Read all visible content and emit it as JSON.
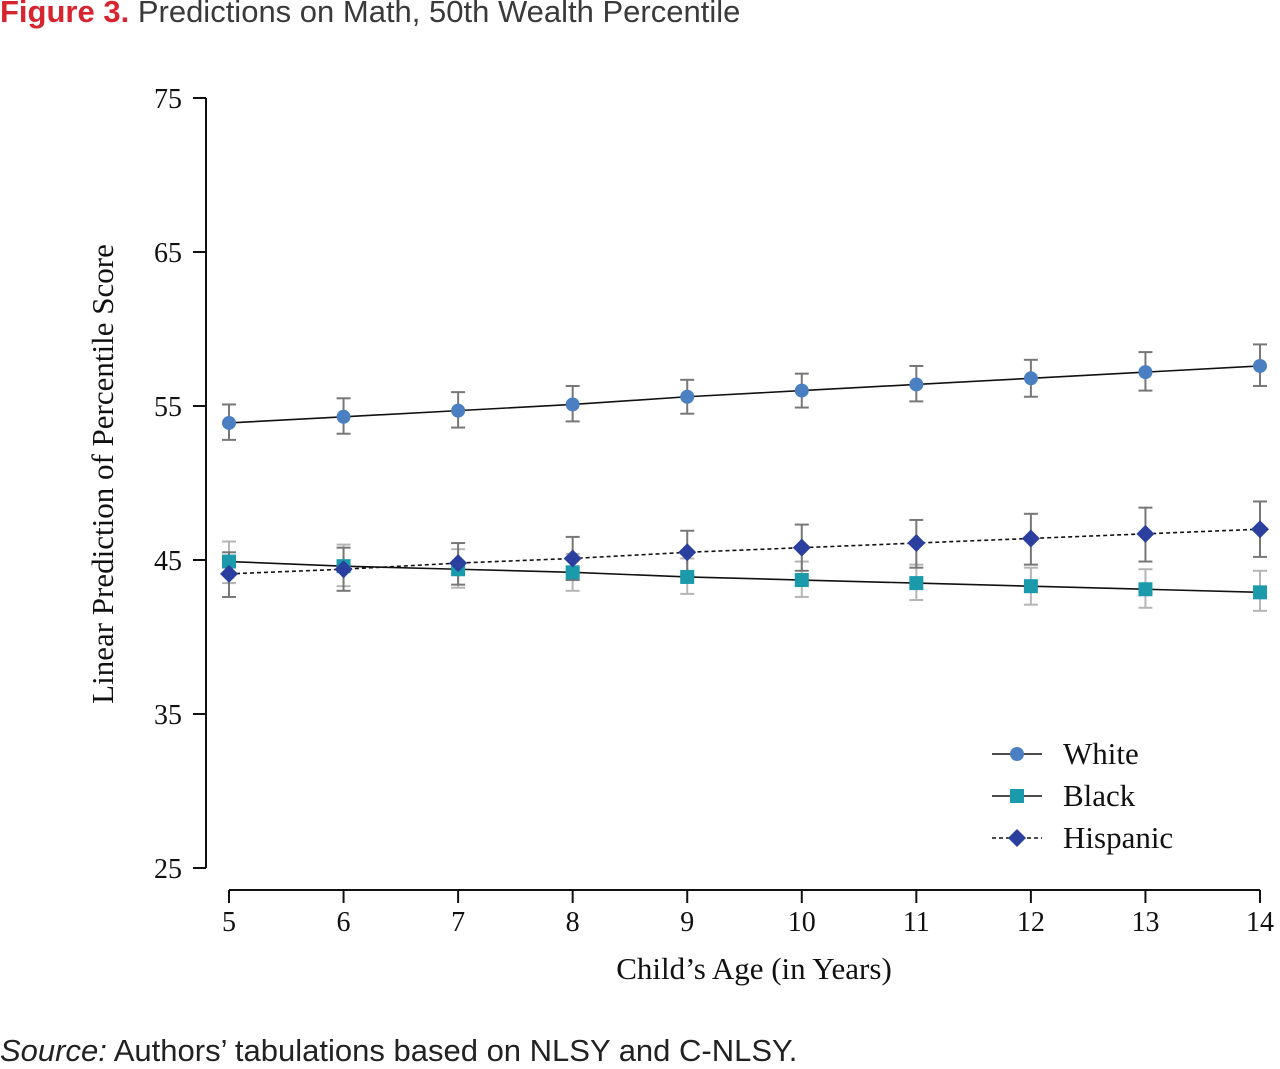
{
  "figure": {
    "label": "Figure 3.",
    "title": "Predictions on Math, 50th Wealth Percentile"
  },
  "source": {
    "label": "Source:",
    "text": "Authors’ tabulations based on NLSY and C-NLSY."
  },
  "chart_data": {
    "type": "line",
    "xlabel": "Child’s Age (in Years)",
    "ylabel": "Linear Prediction of  Percentile Score",
    "xlim": [
      5,
      14
    ],
    "ylim": [
      25,
      75
    ],
    "xticks": [
      5,
      6,
      7,
      8,
      9,
      10,
      11,
      12,
      13,
      14
    ],
    "yticks": [
      25,
      35,
      45,
      55,
      65,
      75
    ],
    "grid": false,
    "legend_position": "bottom-right",
    "x": [
      5,
      6,
      7,
      8,
      9,
      10,
      11,
      12,
      13,
      14
    ],
    "series": [
      {
        "name": "White",
        "marker": "circle",
        "line_style": "solid",
        "color": "#4a7fc1",
        "values": [
          53.9,
          54.3,
          54.7,
          55.1,
          55.6,
          56.0,
          56.4,
          56.8,
          57.2,
          57.6
        ],
        "ci_low": [
          52.8,
          53.2,
          53.6,
          54.0,
          54.5,
          54.9,
          55.3,
          55.6,
          56.0,
          56.3
        ],
        "ci_high": [
          55.1,
          55.5,
          55.9,
          56.3,
          56.7,
          57.1,
          57.6,
          58.0,
          58.5,
          59.0
        ]
      },
      {
        "name": "Black",
        "marker": "square",
        "line_style": "solid",
        "color": "#1a9aaa",
        "values": [
          44.9,
          44.6,
          44.4,
          44.2,
          43.9,
          43.7,
          43.5,
          43.3,
          43.1,
          42.9
        ],
        "ci_low": [
          43.5,
          43.3,
          43.2,
          43.0,
          42.8,
          42.6,
          42.4,
          42.1,
          41.9,
          41.7
        ],
        "ci_high": [
          46.2,
          46.0,
          45.7,
          45.4,
          45.1,
          44.9,
          44.7,
          44.5,
          44.4,
          44.3
        ]
      },
      {
        "name": "Hispanic",
        "marker": "diamond",
        "line_style": "dashed",
        "color": "#2b3f9e",
        "values": [
          44.1,
          44.4,
          44.8,
          45.1,
          45.5,
          45.8,
          46.1,
          46.4,
          46.7,
          47.0
        ],
        "ci_low": [
          42.6,
          43.0,
          43.4,
          43.7,
          44.0,
          44.3,
          44.5,
          44.7,
          44.9,
          45.2
        ],
        "ci_high": [
          45.5,
          45.8,
          46.1,
          46.5,
          46.9,
          47.3,
          47.6,
          48.0,
          48.4,
          48.8
        ]
      }
    ]
  }
}
